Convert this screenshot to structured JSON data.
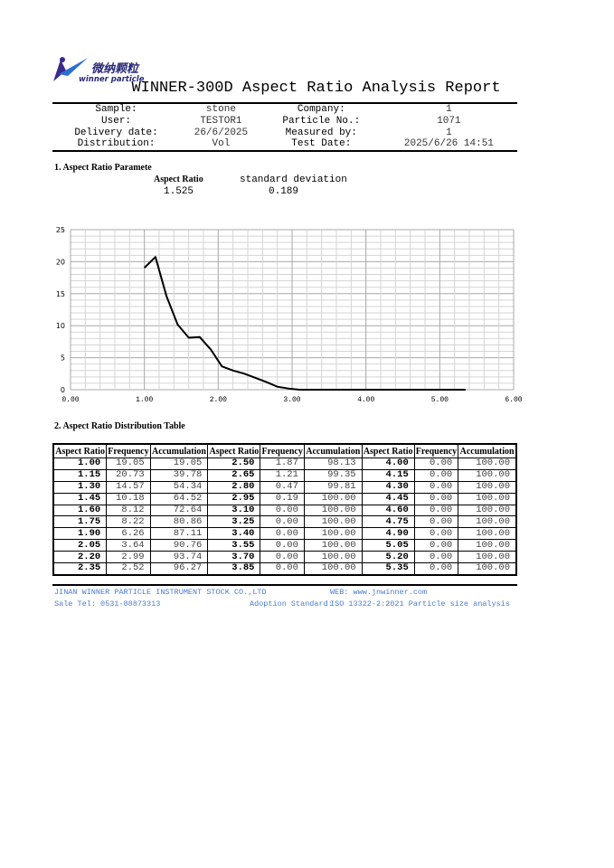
{
  "logo": {
    "text_cn": "微纳颗粒",
    "text_en": "winner particle",
    "colors": [
      "#3a2a8c",
      "#2b6fd6"
    ]
  },
  "title": "WINNER-300D Aspect Ratio Analysis Report",
  "info": [
    {
      "label": "Sample:",
      "value": "stone",
      "label2": "Company:",
      "value2": "1"
    },
    {
      "label": "User:",
      "value": "TESTOR1",
      "label2": "Particle No.:",
      "value2": "1071"
    },
    {
      "label": "Delivery date:",
      "value": "26/6/2025",
      "label2": "Measured by:",
      "value2": "1"
    },
    {
      "label": "Distribution:",
      "value": "Vol",
      "label2": "Test Date:",
      "value2": "2025/6/26 14:51"
    }
  ],
  "section1": {
    "title": "1. Aspect Ratio Paramete",
    "ar_label": "Aspect Ratio",
    "ar_value": "1.525",
    "sd_label": "standard deviation",
    "sd_value": "0.189"
  },
  "chart_data": {
    "type": "line",
    "x": [
      1.0,
      1.15,
      1.3,
      1.45,
      1.6,
      1.75,
      1.9,
      2.05,
      2.2,
      2.35,
      2.5,
      2.65,
      2.8,
      2.95,
      3.1,
      3.25,
      3.4,
      3.55,
      3.7,
      3.85,
      4.0,
      4.15,
      4.3,
      4.45,
      4.6,
      4.75,
      4.9,
      5.05,
      5.2,
      5.35
    ],
    "values": [
      19.05,
      20.73,
      14.57,
      10.18,
      8.12,
      8.22,
      6.26,
      3.64,
      2.99,
      2.52,
      1.87,
      1.21,
      0.47,
      0.19,
      0,
      0,
      0,
      0,
      0,
      0,
      0,
      0,
      0,
      0,
      0,
      0,
      0,
      0,
      0,
      0
    ],
    "xlim": [
      0,
      6
    ],
    "ylim": [
      0,
      25
    ],
    "xticks": [
      "0.00",
      "1.00",
      "2.00",
      "3.00",
      "4.00",
      "5.00",
      "6.00"
    ],
    "yticks": [
      "0",
      "5",
      "10",
      "15",
      "20",
      "25"
    ],
    "grid": true,
    "line_color": "#000000"
  },
  "section2": {
    "title": "2. Aspect Ratio Distribution Table",
    "headers": [
      "Aspect Ratio",
      "Frequency",
      "Accumulation",
      "Aspect Ratio",
      "Frequency",
      "Accumulation",
      "Aspect Ratio",
      "Frequency",
      "Accumulation"
    ],
    "rows": [
      [
        "1.00",
        "19.05",
        "19.05",
        "2.50",
        "1.87",
        "98.13",
        "4.00",
        "0.00",
        "100.00"
      ],
      [
        "1.15",
        "20.73",
        "39.78",
        "2.65",
        "1.21",
        "99.35",
        "4.15",
        "0.00",
        "100.00"
      ],
      [
        "1.30",
        "14.57",
        "54.34",
        "2.80",
        "0.47",
        "99.81",
        "4.30",
        "0.00",
        "100.00"
      ],
      [
        "1.45",
        "10.18",
        "64.52",
        "2.95",
        "0.19",
        "100.00",
        "4.45",
        "0.00",
        "100.00"
      ],
      [
        "1.60",
        "8.12",
        "72.64",
        "3.10",
        "0.00",
        "100.00",
        "4.60",
        "0.00",
        "100.00"
      ],
      [
        "1.75",
        "8.22",
        "80.86",
        "3.25",
        "0.00",
        "100.00",
        "4.75",
        "0.00",
        "100.00"
      ],
      [
        "1.90",
        "6.26",
        "87.11",
        "3.40",
        "0.00",
        "100.00",
        "4.90",
        "0.00",
        "100.00"
      ],
      [
        "2.05",
        "3.64",
        "90.76",
        "3.55",
        "0.00",
        "100.00",
        "5.05",
        "0.00",
        "100.00"
      ],
      [
        "2.20",
        "2.99",
        "93.74",
        "3.70",
        "0.00",
        "100.00",
        "5.20",
        "0.00",
        "100.00"
      ],
      [
        "2.35",
        "2.52",
        "96.27",
        "3.85",
        "0.00",
        "100.00",
        "5.35",
        "0.00",
        "100.00"
      ]
    ]
  },
  "footer": {
    "company": "JINAN WINNER PARTICLE INSTRUMENT STOCK CO.,LTD",
    "web": "WEB: www.jnwinner.com",
    "tel": "Sale Tel: 0531-88873313",
    "standard_label": "Adoption Standard:",
    "standard": "ISO 13322-2:2021 Particle size analysis",
    "color": "#4a7bd0"
  }
}
